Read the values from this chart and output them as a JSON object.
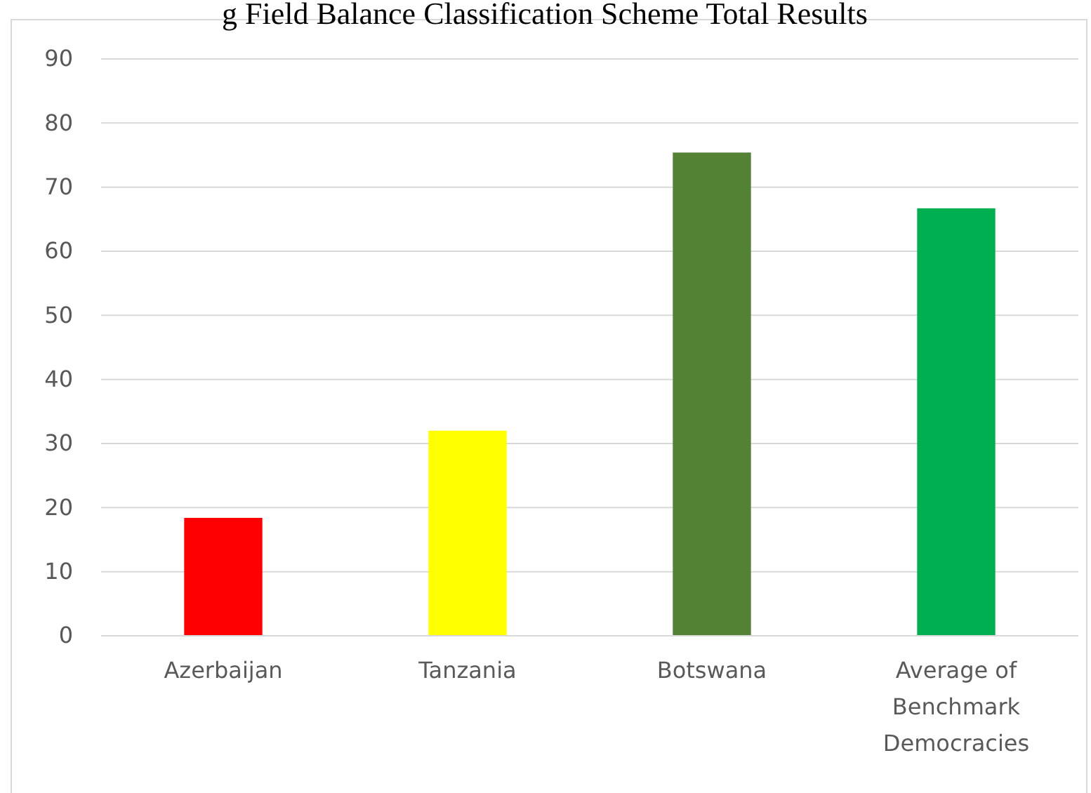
{
  "chart_data": {
    "type": "bar",
    "title": "g Field Balance Classification Scheme Total Results",
    "categories": [
      "Azerbaijan",
      "Tanzania",
      "Botswana",
      "Average of Benchmark Democracies"
    ],
    "values": [
      18.4,
      32.0,
      75.4,
      66.7
    ],
    "colors": [
      "#ff0000",
      "#ffff00",
      "#548235",
      "#00b050"
    ],
    "ylim": [
      0,
      90
    ],
    "yticks": [
      0,
      10,
      20,
      30,
      40,
      50,
      60,
      70,
      80,
      90
    ],
    "grid": "y"
  }
}
